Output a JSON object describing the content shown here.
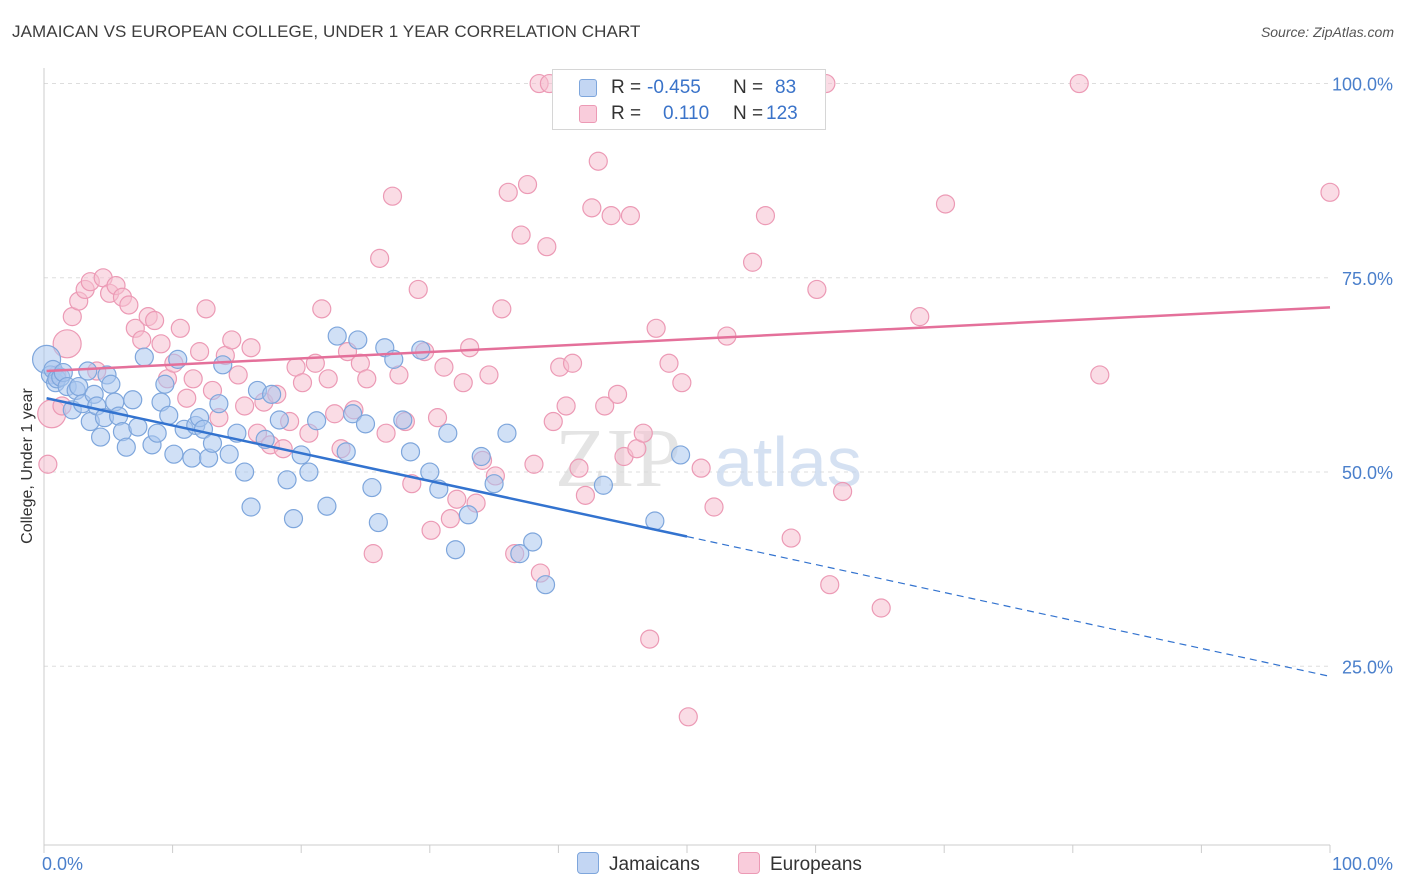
{
  "title": "JAMAICAN VS EUROPEAN COLLEGE, UNDER 1 YEAR CORRELATION CHART",
  "source": "Source: ZipAtlas.com",
  "watermark": {
    "zip": "ZIP",
    "atlas": "atlas"
  },
  "colors": {
    "blue_fill": "#a9c6ee",
    "blue_stroke": "#7ea6dc",
    "blue_line": "#3373cf",
    "pink_fill": "#f6bfd0",
    "pink_stroke": "#ec9ab5",
    "pink_line": "#e4709a",
    "axis_text": "#4a7fcb",
    "grid": "#dddddd"
  },
  "stats": {
    "r_label": "R =",
    "n_label": "N =",
    "rows": [
      {
        "series": "Jamaicans",
        "r": "-0.455",
        "n": "83"
      },
      {
        "series": "Europeans",
        "r": "0.110",
        "n": "123"
      }
    ]
  },
  "legend": [
    "Jamaicans",
    "Europeans"
  ],
  "chart_data": {
    "type": "scatter",
    "title": "JAMAICAN VS EUROPEAN COLLEGE, UNDER 1 YEAR CORRELATION CHART",
    "xlabel": "",
    "ylabel": "College, Under 1 year",
    "xlim": [
      0,
      100
    ],
    "ylim": [
      2,
      102
    ],
    "x_tick_labels": [
      "0.0%",
      "100.0%"
    ],
    "y_ticks": [
      25,
      50,
      75,
      100
    ],
    "y_tick_labels": [
      "25.0%",
      "50.0%",
      "75.0%",
      "100.0%"
    ],
    "grid": true,
    "legend_position": "bottom-center",
    "series": [
      {
        "name": "Jamaicans",
        "points": [
          [
            0.2,
            64.5
          ],
          [
            0.5,
            62.5
          ],
          [
            0.7,
            63.2
          ],
          [
            0.9,
            61.5
          ],
          [
            1.0,
            62.0
          ],
          [
            1.3,
            62.2
          ],
          [
            1.5,
            62.8
          ],
          [
            1.8,
            61.0
          ],
          [
            2.2,
            58.0
          ],
          [
            2.5,
            60.5
          ],
          [
            2.7,
            61.0
          ],
          [
            3.0,
            58.8
          ],
          [
            3.4,
            63.0
          ],
          [
            3.6,
            56.5
          ],
          [
            3.9,
            60.0
          ],
          [
            4.1,
            58.5
          ],
          [
            4.4,
            54.5
          ],
          [
            4.7,
            57.0
          ],
          [
            4.9,
            62.5
          ],
          [
            5.2,
            61.3
          ],
          [
            5.5,
            59.0
          ],
          [
            5.8,
            57.2
          ],
          [
            6.1,
            55.2
          ],
          [
            6.4,
            53.2
          ],
          [
            6.9,
            59.3
          ],
          [
            7.3,
            55.8
          ],
          [
            7.8,
            64.8
          ],
          [
            8.4,
            53.5
          ],
          [
            8.8,
            55.0
          ],
          [
            9.1,
            59.0
          ],
          [
            9.4,
            61.3
          ],
          [
            9.7,
            57.3
          ],
          [
            10.1,
            52.3
          ],
          [
            10.4,
            64.5
          ],
          [
            10.9,
            55.5
          ],
          [
            11.5,
            51.8
          ],
          [
            11.8,
            56.0
          ],
          [
            12.1,
            57.0
          ],
          [
            12.4,
            55.5
          ],
          [
            12.8,
            51.8
          ],
          [
            13.1,
            53.7
          ],
          [
            13.6,
            58.8
          ],
          [
            13.9,
            63.8
          ],
          [
            14.4,
            52.3
          ],
          [
            15.0,
            55.0
          ],
          [
            15.6,
            50.0
          ],
          [
            16.1,
            45.5
          ],
          [
            16.6,
            60.5
          ],
          [
            17.2,
            54.2
          ],
          [
            17.7,
            60.0
          ],
          [
            18.3,
            56.7
          ],
          [
            18.9,
            49.0
          ],
          [
            19.4,
            44.0
          ],
          [
            20.0,
            52.2
          ],
          [
            20.6,
            50.0
          ],
          [
            21.2,
            56.6
          ],
          [
            22.0,
            45.6
          ],
          [
            22.8,
            67.5
          ],
          [
            23.5,
            52.6
          ],
          [
            24.0,
            57.5
          ],
          [
            24.4,
            67.0
          ],
          [
            25.0,
            56.2
          ],
          [
            25.5,
            48.0
          ],
          [
            26.0,
            43.5
          ],
          [
            26.5,
            66.0
          ],
          [
            27.2,
            64.5
          ],
          [
            27.9,
            56.7
          ],
          [
            28.5,
            52.6
          ],
          [
            29.3,
            65.7
          ],
          [
            30.0,
            50.0
          ],
          [
            30.7,
            47.8
          ],
          [
            31.4,
            55.0
          ],
          [
            32.0,
            40.0
          ],
          [
            33.0,
            44.5
          ],
          [
            34.0,
            52.0
          ],
          [
            35.0,
            48.5
          ],
          [
            36.0,
            55.0
          ],
          [
            37.0,
            39.5
          ],
          [
            38.0,
            41.0
          ],
          [
            39.0,
            35.5
          ],
          [
            43.5,
            48.3
          ],
          [
            47.5,
            43.7
          ],
          [
            49.5,
            52.2
          ]
        ],
        "trend": {
          "x_start": 0.2,
          "y_start": 59.5,
          "x_solid_end": 50,
          "y_solid_end": 41.7,
          "x_end": 100,
          "y_end": 23.7,
          "dashed_after_solid": true
        }
      },
      {
        "name": "Europeans",
        "points": [
          [
            0.3,
            51.0
          ],
          [
            0.6,
            57.5
          ],
          [
            1.0,
            62.5
          ],
          [
            1.4,
            58.5
          ],
          [
            1.8,
            66.5
          ],
          [
            2.2,
            70.0
          ],
          [
            2.7,
            72.0
          ],
          [
            3.2,
            73.5
          ],
          [
            3.6,
            74.5
          ],
          [
            4.1,
            63.0
          ],
          [
            4.6,
            75.0
          ],
          [
            5.1,
            73.0
          ],
          [
            5.6,
            74.0
          ],
          [
            6.1,
            72.5
          ],
          [
            6.6,
            71.5
          ],
          [
            7.1,
            68.5
          ],
          [
            7.6,
            67.0
          ],
          [
            8.1,
            70.0
          ],
          [
            8.6,
            69.5
          ],
          [
            9.1,
            66.5
          ],
          [
            9.6,
            62.0
          ],
          [
            10.1,
            64.0
          ],
          [
            10.6,
            68.5
          ],
          [
            11.1,
            59.5
          ],
          [
            11.6,
            62.0
          ],
          [
            12.1,
            65.5
          ],
          [
            12.6,
            71.0
          ],
          [
            13.1,
            60.5
          ],
          [
            13.6,
            57.0
          ],
          [
            14.1,
            65.0
          ],
          [
            14.6,
            67.0
          ],
          [
            15.1,
            62.5
          ],
          [
            15.6,
            58.5
          ],
          [
            16.1,
            66.0
          ],
          [
            16.6,
            55.0
          ],
          [
            17.1,
            59.0
          ],
          [
            17.6,
            53.5
          ],
          [
            18.1,
            60.0
          ],
          [
            18.6,
            53.0
          ],
          [
            19.1,
            56.5
          ],
          [
            19.6,
            63.5
          ],
          [
            20.1,
            61.5
          ],
          [
            20.6,
            55.0
          ],
          [
            21.1,
            64.0
          ],
          [
            21.6,
            71.0
          ],
          [
            22.1,
            62.0
          ],
          [
            22.6,
            57.5
          ],
          [
            23.1,
            53.0
          ],
          [
            23.6,
            65.5
          ],
          [
            24.1,
            58.0
          ],
          [
            24.6,
            64.0
          ],
          [
            25.1,
            62.0
          ],
          [
            25.6,
            39.5
          ],
          [
            26.1,
            77.5
          ],
          [
            26.6,
            55.0
          ],
          [
            27.1,
            85.5
          ],
          [
            27.6,
            62.5
          ],
          [
            28.1,
            56.5
          ],
          [
            28.6,
            48.5
          ],
          [
            29.1,
            73.5
          ],
          [
            29.6,
            65.5
          ],
          [
            30.1,
            42.5
          ],
          [
            30.6,
            57.0
          ],
          [
            31.1,
            63.5
          ],
          [
            31.6,
            44.0
          ],
          [
            32.1,
            46.5
          ],
          [
            32.6,
            61.5
          ],
          [
            33.1,
            66.0
          ],
          [
            33.6,
            46.0
          ],
          [
            34.1,
            51.5
          ],
          [
            34.6,
            62.5
          ],
          [
            35.1,
            49.5
          ],
          [
            35.6,
            71.0
          ],
          [
            36.1,
            86.0
          ],
          [
            36.6,
            39.5
          ],
          [
            37.1,
            80.5
          ],
          [
            37.6,
            87.0
          ],
          [
            38.1,
            51.0
          ],
          [
            38.6,
            37.0
          ],
          [
            39.1,
            79.0
          ],
          [
            39.6,
            56.5
          ],
          [
            40.1,
            63.5
          ],
          [
            40.6,
            58.5
          ],
          [
            41.1,
            64.0
          ],
          [
            41.6,
            50.5
          ],
          [
            42.1,
            47.0
          ],
          [
            42.6,
            84.0
          ],
          [
            43.1,
            90.0
          ],
          [
            43.6,
            58.5
          ],
          [
            44.1,
            83.0
          ],
          [
            44.6,
            60.0
          ],
          [
            45.1,
            52.0
          ],
          [
            45.6,
            83.0
          ],
          [
            46.1,
            53.0
          ],
          [
            46.6,
            55.0
          ],
          [
            47.1,
            28.5
          ],
          [
            47.6,
            68.5
          ],
          [
            48.6,
            64.0
          ],
          [
            49.6,
            61.5
          ],
          [
            50.1,
            18.5
          ],
          [
            51.1,
            50.5
          ],
          [
            52.1,
            45.5
          ],
          [
            53.1,
            67.5
          ],
          [
            55.1,
            77.0
          ],
          [
            56.1,
            83.0
          ],
          [
            58.1,
            41.5
          ],
          [
            60.1,
            73.5
          ],
          [
            61.1,
            35.5
          ],
          [
            62.1,
            47.5
          ],
          [
            65.1,
            32.5
          ],
          [
            68.1,
            70.0
          ],
          [
            70.1,
            84.5
          ],
          [
            82.1,
            62.5
          ],
          [
            100.0,
            86.0
          ],
          [
            38.5,
            100.0
          ],
          [
            39.3,
            100.0
          ],
          [
            41.2,
            100.0
          ],
          [
            44.8,
            100.0
          ],
          [
            48.3,
            100.0
          ],
          [
            51.5,
            100.0
          ],
          [
            56.0,
            100.0
          ],
          [
            60.8,
            100.0
          ],
          [
            80.5,
            100.0
          ]
        ],
        "trend": {
          "x_start": 0.2,
          "y_start": 63.0,
          "x_end": 100,
          "y_end": 71.2
        }
      }
    ]
  }
}
